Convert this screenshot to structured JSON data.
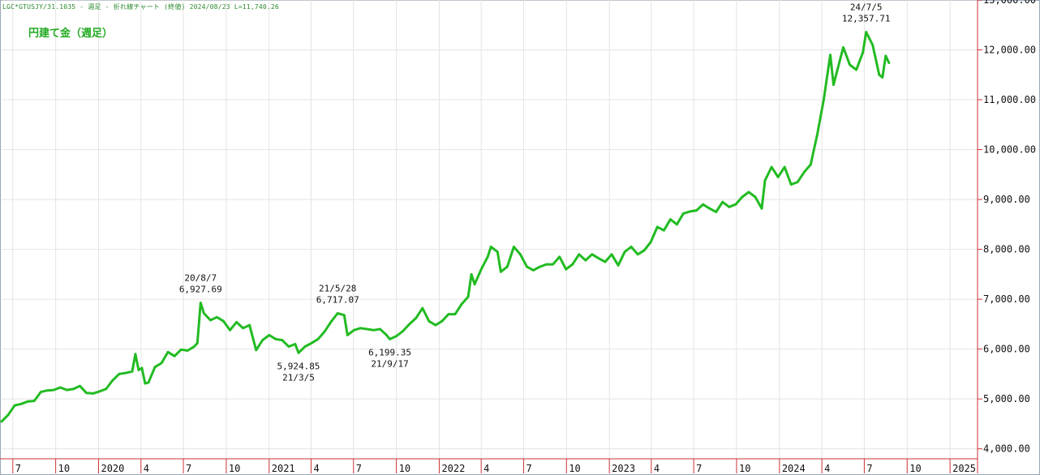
{
  "header": {
    "ticker_line": "LGC*GTUSJY/31.1035 - 週足 - 折れ線チャート (終値) 2024/08/23 L=11,740.26",
    "chart_title": "円建て金（週足）"
  },
  "colors": {
    "line": "#22bb22",
    "axis": "#cc3333",
    "grid": "#e4e4e4",
    "ticker": "#2a8a2a"
  },
  "chart_data": {
    "type": "line",
    "title": "円建て金（週足）",
    "xlabel": "",
    "ylabel": "",
    "grid": true,
    "y_axis_side": "right",
    "ylim": [
      3800,
      13000
    ],
    "xlim": [
      "2019-06-07",
      "2025-03-01"
    ],
    "y_ticks": [
      {
        "value": 4000,
        "label": "4,000.00"
      },
      {
        "value": 5000,
        "label": "5,000.00"
      },
      {
        "value": 6000,
        "label": "6,000.00"
      },
      {
        "value": 7000,
        "label": "7,000.00"
      },
      {
        "value": 8000,
        "label": "8,000.00"
      },
      {
        "value": 9000,
        "label": "9,000.00"
      },
      {
        "value": 10000,
        "label": "10,000.00"
      },
      {
        "value": 11000,
        "label": "11,000.00"
      },
      {
        "value": 12000,
        "label": "12,000.00"
      },
      {
        "value": 13000,
        "label": "13,000.00"
      }
    ],
    "x_ticks": [
      {
        "date": "2019-07-01",
        "label": "7"
      },
      {
        "date": "2019-10-01",
        "label": "10"
      },
      {
        "date": "2020-01-01",
        "label": "2020"
      },
      {
        "date": "2020-04-01",
        "label": "4"
      },
      {
        "date": "2020-07-01",
        "label": "7"
      },
      {
        "date": "2020-10-01",
        "label": "10"
      },
      {
        "date": "2021-01-01",
        "label": "2021"
      },
      {
        "date": "2021-04-01",
        "label": "4"
      },
      {
        "date": "2021-07-01",
        "label": "7"
      },
      {
        "date": "2021-10-01",
        "label": "10"
      },
      {
        "date": "2022-01-01",
        "label": "2022"
      },
      {
        "date": "2022-04-01",
        "label": "4"
      },
      {
        "date": "2022-07-01",
        "label": "7"
      },
      {
        "date": "2022-10-01",
        "label": "10"
      },
      {
        "date": "2023-01-01",
        "label": "2023"
      },
      {
        "date": "2023-04-01",
        "label": "4"
      },
      {
        "date": "2023-07-01",
        "label": "7"
      },
      {
        "date": "2023-10-01",
        "label": "10"
      },
      {
        "date": "2024-01-01",
        "label": "2024"
      },
      {
        "date": "2024-04-01",
        "label": "4"
      },
      {
        "date": "2024-07-01",
        "label": "7"
      },
      {
        "date": "2024-10-01",
        "label": "10"
      },
      {
        "date": "2025-01-01",
        "label": "2025"
      }
    ],
    "series": [
      {
        "points": [
          [
            "2019-06-07",
            4550
          ],
          [
            "2019-06-21",
            4680
          ],
          [
            "2019-07-05",
            4870
          ],
          [
            "2019-07-19",
            4900
          ],
          [
            "2019-08-02",
            4950
          ],
          [
            "2019-08-16",
            4960
          ],
          [
            "2019-08-30",
            5140
          ],
          [
            "2019-09-13",
            5170
          ],
          [
            "2019-09-27",
            5180
          ],
          [
            "2019-10-11",
            5230
          ],
          [
            "2019-10-25",
            5180
          ],
          [
            "2019-11-08",
            5200
          ],
          [
            "2019-11-22",
            5260
          ],
          [
            "2019-12-06",
            5120
          ],
          [
            "2019-12-20",
            5110
          ],
          [
            "2020-01-03",
            5150
          ],
          [
            "2020-01-17",
            5200
          ],
          [
            "2020-01-31",
            5370
          ],
          [
            "2020-02-14",
            5500
          ],
          [
            "2020-02-28",
            5520
          ],
          [
            "2020-03-13",
            5550
          ],
          [
            "2020-03-20",
            5900
          ],
          [
            "2020-03-27",
            5580
          ],
          [
            "2020-04-03",
            5620
          ],
          [
            "2020-04-10",
            5310
          ],
          [
            "2020-04-17",
            5330
          ],
          [
            "2020-05-01",
            5640
          ],
          [
            "2020-05-15",
            5720
          ],
          [
            "2020-05-29",
            5940
          ],
          [
            "2020-06-12",
            5860
          ],
          [
            "2020-06-26",
            5990
          ],
          [
            "2020-07-10",
            5970
          ],
          [
            "2020-07-24",
            6050
          ],
          [
            "2020-07-31",
            6120
          ],
          [
            "2020-08-07",
            6927.69
          ],
          [
            "2020-08-14",
            6720
          ],
          [
            "2020-08-28",
            6580
          ],
          [
            "2020-09-11",
            6640
          ],
          [
            "2020-09-25",
            6560
          ],
          [
            "2020-10-09",
            6380
          ],
          [
            "2020-10-23",
            6540
          ],
          [
            "2020-11-06",
            6420
          ],
          [
            "2020-11-20",
            6480
          ],
          [
            "2020-12-04",
            5980
          ],
          [
            "2020-12-18",
            6180
          ],
          [
            "2021-01-01",
            6280
          ],
          [
            "2021-01-15",
            6200
          ],
          [
            "2021-01-29",
            6180
          ],
          [
            "2021-02-12",
            6050
          ],
          [
            "2021-02-26",
            6100
          ],
          [
            "2021-03-05",
            5924.85
          ],
          [
            "2021-03-19",
            6050
          ],
          [
            "2021-04-02",
            6120
          ],
          [
            "2021-04-16",
            6200
          ],
          [
            "2021-04-30",
            6350
          ],
          [
            "2021-05-14",
            6550
          ],
          [
            "2021-05-28",
            6717.07
          ],
          [
            "2021-06-11",
            6680
          ],
          [
            "2021-06-18",
            6280
          ],
          [
            "2021-07-02",
            6380
          ],
          [
            "2021-07-16",
            6420
          ],
          [
            "2021-07-30",
            6400
          ],
          [
            "2021-08-13",
            6380
          ],
          [
            "2021-08-27",
            6400
          ],
          [
            "2021-09-10",
            6280
          ],
          [
            "2021-09-17",
            6199.35
          ],
          [
            "2021-10-01",
            6260
          ],
          [
            "2021-10-15",
            6360
          ],
          [
            "2021-10-29",
            6500
          ],
          [
            "2021-11-12",
            6620
          ],
          [
            "2021-11-26",
            6820
          ],
          [
            "2021-12-10",
            6560
          ],
          [
            "2021-12-24",
            6480
          ],
          [
            "2022-01-07",
            6560
          ],
          [
            "2022-01-21",
            6700
          ],
          [
            "2022-02-04",
            6700
          ],
          [
            "2022-02-18",
            6900
          ],
          [
            "2022-03-04",
            7050
          ],
          [
            "2022-03-11",
            7500
          ],
          [
            "2022-03-18",
            7300
          ],
          [
            "2022-04-01",
            7600
          ],
          [
            "2022-04-15",
            7850
          ],
          [
            "2022-04-22",
            8050
          ],
          [
            "2022-05-06",
            7950
          ],
          [
            "2022-05-13",
            7550
          ],
          [
            "2022-05-27",
            7650
          ],
          [
            "2022-06-10",
            8050
          ],
          [
            "2022-06-24",
            7900
          ],
          [
            "2022-07-08",
            7650
          ],
          [
            "2022-07-22",
            7580
          ],
          [
            "2022-08-05",
            7650
          ],
          [
            "2022-08-19",
            7700
          ],
          [
            "2022-09-02",
            7700
          ],
          [
            "2022-09-16",
            7850
          ],
          [
            "2022-09-30",
            7600
          ],
          [
            "2022-10-14",
            7700
          ],
          [
            "2022-10-28",
            7900
          ],
          [
            "2022-11-11",
            7780
          ],
          [
            "2022-11-25",
            7900
          ],
          [
            "2022-12-09",
            7820
          ],
          [
            "2022-12-23",
            7750
          ],
          [
            "2023-01-06",
            7900
          ],
          [
            "2023-01-20",
            7680
          ],
          [
            "2023-02-03",
            7950
          ],
          [
            "2023-02-17",
            8050
          ],
          [
            "2023-03-03",
            7900
          ],
          [
            "2023-03-17",
            7980
          ],
          [
            "2023-03-31",
            8150
          ],
          [
            "2023-04-14",
            8450
          ],
          [
            "2023-04-28",
            8380
          ],
          [
            "2023-05-12",
            8600
          ],
          [
            "2023-05-26",
            8500
          ],
          [
            "2023-06-09",
            8720
          ],
          [
            "2023-06-23",
            8760
          ],
          [
            "2023-07-07",
            8780
          ],
          [
            "2023-07-21",
            8900
          ],
          [
            "2023-08-04",
            8820
          ],
          [
            "2023-08-18",
            8750
          ],
          [
            "2023-09-01",
            8950
          ],
          [
            "2023-09-15",
            8850
          ],
          [
            "2023-09-29",
            8900
          ],
          [
            "2023-10-13",
            9050
          ],
          [
            "2023-10-27",
            9150
          ],
          [
            "2023-11-10",
            9050
          ],
          [
            "2023-11-24",
            8820
          ],
          [
            "2023-12-01",
            9380
          ],
          [
            "2023-12-15",
            9650
          ],
          [
            "2023-12-29",
            9450
          ],
          [
            "2024-01-12",
            9650
          ],
          [
            "2024-01-26",
            9300
          ],
          [
            "2024-02-09",
            9350
          ],
          [
            "2024-02-23",
            9550
          ],
          [
            "2024-03-08",
            9700
          ],
          [
            "2024-03-22",
            10300
          ],
          [
            "2024-04-05",
            11000
          ],
          [
            "2024-04-19",
            11900
          ],
          [
            "2024-04-26",
            11300
          ],
          [
            "2024-05-10",
            11800
          ],
          [
            "2024-05-17",
            12050
          ],
          [
            "2024-05-31",
            11700
          ],
          [
            "2024-06-14",
            11600
          ],
          [
            "2024-06-28",
            11950
          ],
          [
            "2024-07-05",
            12357.71
          ],
          [
            "2024-07-19",
            12100
          ],
          [
            "2024-08-02",
            11500
          ],
          [
            "2024-08-09",
            11450
          ],
          [
            "2024-08-16",
            11880
          ],
          [
            "2024-08-23",
            11740.26
          ]
        ]
      }
    ],
    "annotations": [
      {
        "date": "2020-08-07",
        "label_date": "20/8/7",
        "label_value": "6,927.69",
        "position": "above"
      },
      {
        "date": "2021-03-05",
        "label_date": "21/3/5",
        "label_value": "5,924.85",
        "position": "below"
      },
      {
        "date": "2021-05-28",
        "label_date": "21/5/28",
        "label_value": "6,717.07",
        "position": "above"
      },
      {
        "date": "2021-09-17",
        "label_date": "21/9/17",
        "label_value": "6,199.35",
        "position": "below"
      },
      {
        "date": "2024-07-05",
        "label_date": "24/7/5",
        "label_value": "12,357.71",
        "position": "above"
      }
    ]
  }
}
